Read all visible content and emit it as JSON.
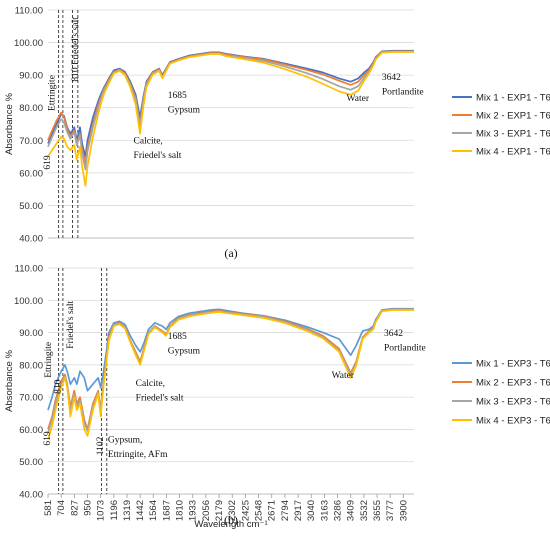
{
  "chart_data": [
    {
      "type": "line",
      "panel_label": "(a)",
      "ylabel": "Absorbance %",
      "ylim": [
        40,
        110
      ],
      "yticks": [
        "40.00",
        "50.00",
        "60.00",
        "70.00",
        "80.00",
        "90.00",
        "100.00",
        "110.00"
      ],
      "xlim": [
        581,
        4000
      ],
      "grid": true,
      "legend_position": "right",
      "annotations": [
        {
          "text": "Ettringite",
          "x": 640,
          "y": 79,
          "rotate": true
        },
        {
          "text": "810 Friedel's salt",
          "x": 860,
          "y": 88,
          "rotate": true
        },
        {
          "text": "619",
          "x": 600,
          "y": 61,
          "rotate": true
        },
        {
          "text": "1685",
          "x": 1700,
          "y": 83
        },
        {
          "text": "Gypsum",
          "x": 1700,
          "y": 78.5
        },
        {
          "text": "Calcite,",
          "x": 1380,
          "y": 69
        },
        {
          "text": "Friedel's salt",
          "x": 1380,
          "y": 64.5
        },
        {
          "text": "Water",
          "x": 3370,
          "y": 82
        },
        {
          "text": "3642",
          "x": 3700,
          "y": 88.5
        },
        {
          "text": "Portlandite",
          "x": 3700,
          "y": 84
        }
      ],
      "dashed_x": [
        680,
        720,
        810,
        860
      ],
      "series": [
        {
          "name": "Mix 1 - EXP1 - T6",
          "color": "#4472C4",
          "x": [
            581,
            619,
            660,
            704,
            730,
            760,
            790,
            827,
            850,
            880,
            900,
            930,
            950,
            1000,
            1050,
            1073,
            1100,
            1150,
            1196,
            1250,
            1300,
            1350,
            1400,
            1440,
            1470,
            1500,
            1560,
            1620,
            1650,
            1685,
            1720,
            1800,
            1900,
            2000,
            2100,
            2179,
            2250,
            2400,
            2600,
            2800,
            3000,
            3150,
            3300,
            3409,
            3480,
            3540,
            3580,
            3620,
            3642,
            3700,
            3800,
            3900,
            4000
          ],
          "y": [
            69,
            72,
            75,
            78,
            77.5,
            74,
            72,
            74,
            70,
            74,
            69,
            65,
            70,
            77,
            82,
            84,
            86,
            89,
            91.5,
            92,
            91,
            88,
            84,
            77,
            83,
            88,
            91,
            92,
            90,
            92,
            94,
            95,
            96,
            96.5,
            97,
            97,
            96.5,
            95.8,
            95,
            93.5,
            92,
            90.8,
            89,
            88,
            89,
            91,
            92,
            94,
            95.5,
            97.3,
            97.5,
            97.5,
            97.5
          ]
        },
        {
          "name": "Mix 2 - EXP1 - T6",
          "color": "#ED7D31",
          "x": [
            581,
            619,
            660,
            704,
            730,
            760,
            790,
            827,
            850,
            880,
            900,
            930,
            950,
            1000,
            1050,
            1073,
            1100,
            1150,
            1196,
            1250,
            1300,
            1350,
            1400,
            1440,
            1470,
            1500,
            1560,
            1620,
            1650,
            1685,
            1720,
            1800,
            1900,
            2000,
            2100,
            2179,
            2250,
            2400,
            2600,
            2800,
            3000,
            3150,
            3300,
            3409,
            3480,
            3540,
            3580,
            3620,
            3642,
            3700,
            3800,
            3900,
            4000
          ],
          "y": [
            70,
            73,
            76,
            78.5,
            77,
            73.5,
            71,
            73,
            69,
            72,
            67,
            63,
            68,
            75,
            81,
            83,
            85.5,
            88.5,
            91,
            91.8,
            90.6,
            87.3,
            83,
            75,
            82,
            87.5,
            90.8,
            91.8,
            89.5,
            91.8,
            93.8,
            94.8,
            95.8,
            96.3,
            96.8,
            96.8,
            96.3,
            95.6,
            94.8,
            93.2,
            91.6,
            90.2,
            88.3,
            87,
            88,
            90.3,
            91.5,
            93.6,
            95.2,
            97.1,
            97.3,
            97.3,
            97.3
          ]
        },
        {
          "name": "Mix 3 - EXP1 - T6",
          "color": "#A5A5A5",
          "x": [
            581,
            619,
            660,
            704,
            730,
            760,
            790,
            827,
            850,
            880,
            900,
            930,
            950,
            1000,
            1050,
            1073,
            1100,
            1150,
            1196,
            1250,
            1300,
            1350,
            1400,
            1440,
            1470,
            1500,
            1560,
            1620,
            1650,
            1685,
            1720,
            1800,
            1900,
            2000,
            2100,
            2179,
            2250,
            2400,
            2600,
            2800,
            3000,
            3150,
            3300,
            3409,
            3480,
            3540,
            3580,
            3620,
            3642,
            3700,
            3800,
            3900,
            4000
          ],
          "y": [
            68,
            71,
            74,
            76.5,
            75.5,
            72.5,
            70.5,
            72.5,
            68.5,
            71.5,
            66,
            61,
            66.5,
            74,
            80,
            82.5,
            85,
            88,
            90.8,
            91.5,
            90.3,
            87,
            82.5,
            74,
            81.5,
            87,
            90.5,
            91.5,
            89.3,
            91.5,
            93.6,
            94.6,
            95.6,
            96.1,
            96.6,
            96.6,
            96,
            95.3,
            94.3,
            92.6,
            90.6,
            88.8,
            86.6,
            85.5,
            86.6,
            89.5,
            91,
            93.3,
            95,
            97,
            97.2,
            97.2,
            97.2
          ]
        },
        {
          "name": "Mix 4 - EXP1 - T6",
          "color": "#FFC000",
          "x": [
            581,
            619,
            660,
            704,
            730,
            760,
            790,
            827,
            850,
            880,
            900,
            930,
            950,
            1000,
            1050,
            1073,
            1100,
            1150,
            1196,
            1250,
            1300,
            1350,
            1400,
            1440,
            1470,
            1500,
            1560,
            1620,
            1650,
            1685,
            1720,
            1800,
            1900,
            2000,
            2100,
            2179,
            2250,
            2400,
            2600,
            2800,
            3000,
            3150,
            3300,
            3409,
            3480,
            3540,
            3580,
            3620,
            3642,
            3700,
            3800,
            3900,
            4000
          ],
          "y": [
            65,
            67,
            69,
            71,
            70.5,
            68,
            67,
            68.5,
            64,
            68,
            62,
            56,
            62,
            71,
            78,
            81,
            84,
            87.5,
            90.5,
            91.3,
            90,
            86.3,
            81,
            72,
            80,
            86.3,
            90.2,
            91.3,
            89,
            91.3,
            93.5,
            94.5,
            95.5,
            96,
            96.5,
            96.5,
            95.8,
            95,
            93.8,
            91.8,
            89.5,
            87.3,
            85,
            84,
            85.3,
            88.6,
            90.5,
            93,
            94.8,
            96.9,
            97.1,
            97.1,
            97.1
          ]
        }
      ]
    },
    {
      "type": "line",
      "panel_label": "(b)",
      "ylabel": "Absorbance %",
      "xlabel": "Wavelength cm⁻¹",
      "ylim": [
        40,
        110
      ],
      "yticks": [
        "40.00",
        "50.00",
        "60.00",
        "70.00",
        "80.00",
        "90.00",
        "100.00",
        "110.00"
      ],
      "xlim": [
        581,
        4000
      ],
      "xticks": [
        "581",
        "704",
        "827",
        "950",
        "1073",
        "1196",
        "1319",
        "1442",
        "1564",
        "1687",
        "1810",
        "1933",
        "2056",
        "2179",
        "2302",
        "2425",
        "2548",
        "2671",
        "2794",
        "2917",
        "3040",
        "3163",
        "3286",
        "3409",
        "3532",
        "3655",
        "3777",
        "3900"
      ],
      "grid": true,
      "legend_position": "right",
      "annotations": [
        {
          "text": "Ettringite",
          "x": 610,
          "y": 76,
          "rotate": true
        },
        {
          "text": "810",
          "x": 700,
          "y": 71,
          "rotate": true
        },
        {
          "text": "Friedel's salt",
          "x": 815,
          "y": 85,
          "rotate": true
        },
        {
          "text": "619",
          "x": 600,
          "y": 55,
          "rotate": true
        },
        {
          "text": "1102",
          "x": 1095,
          "y": 52,
          "rotate": true
        },
        {
          "text": "Gypsum,",
          "x": 1140,
          "y": 56
        },
        {
          "text": "Ettringite,  AFm",
          "x": 1140,
          "y": 51.5
        },
        {
          "text": "1685",
          "x": 1700,
          "y": 88
        },
        {
          "text": "Gypsum",
          "x": 1700,
          "y": 83.5
        },
        {
          "text": "Calcite,",
          "x": 1400,
          "y": 73.5
        },
        {
          "text": "Friedel's salt",
          "x": 1400,
          "y": 69
        },
        {
          "text": "Water",
          "x": 3230,
          "y": 76
        },
        {
          "text": "3642",
          "x": 3720,
          "y": 89
        },
        {
          "text": "Portlandite",
          "x": 3720,
          "y": 84.5
        }
      ],
      "dashed_x": [
        680,
        720,
        1080,
        1130
      ],
      "series": [
        {
          "name": "Mix 1 - EXP3 - T6",
          "color": "#5B9BD5",
          "x": [
            581,
            619,
            650,
            704,
            740,
            760,
            790,
            827,
            850,
            880,
            920,
            950,
            1000,
            1050,
            1073,
            1100,
            1130,
            1150,
            1196,
            1250,
            1300,
            1350,
            1400,
            1442,
            1480,
            1520,
            1580,
            1650,
            1685,
            1720,
            1800,
            1900,
            2000,
            2100,
            2179,
            2250,
            2400,
            2600,
            2800,
            3000,
            3150,
            3300,
            3409,
            3460,
            3520,
            3580,
            3620,
            3642,
            3700,
            3800,
            3900,
            4000
          ],
          "y": [
            66,
            70,
            74,
            78,
            80,
            78,
            74,
            76,
            74,
            78,
            76,
            72,
            74,
            76,
            73,
            78,
            85,
            90,
            93,
            93.5,
            92.5,
            89,
            86,
            84,
            87,
            91,
            93,
            92,
            91,
            93,
            95,
            96,
            96.5,
            97,
            97.2,
            96.8,
            96,
            95.2,
            93.8,
            91.8,
            90,
            88,
            83,
            86,
            90.5,
            91,
            92,
            94,
            97,
            97.4,
            97.4,
            97.4
          ]
        },
        {
          "name": "Mix 2 - EXP3 - T6",
          "color": "#ED7D31",
          "x": [
            581,
            619,
            650,
            704,
            740,
            760,
            790,
            827,
            850,
            880,
            920,
            950,
            1000,
            1050,
            1073,
            1100,
            1130,
            1150,
            1196,
            1250,
            1300,
            1350,
            1400,
            1442,
            1480,
            1520,
            1580,
            1650,
            1685,
            1720,
            1800,
            1900,
            2000,
            2100,
            2179,
            2250,
            2400,
            2600,
            2800,
            3000,
            3150,
            3300,
            3409,
            3460,
            3520,
            3580,
            3620,
            3642,
            3700,
            3800,
            3900,
            4000
          ],
          "y": [
            60,
            64,
            69,
            75,
            77,
            74,
            67,
            72,
            68,
            70,
            63,
            60,
            68,
            72,
            66,
            75,
            83,
            88.5,
            92.5,
            93,
            91.8,
            87.5,
            84,
            81,
            85.5,
            90,
            92,
            90.5,
            89.5,
            92,
            94.5,
            95.5,
            96,
            96.5,
            96.8,
            96.4,
            95.8,
            95,
            93.5,
            91.2,
            89,
            85,
            77.5,
            81,
            88.5,
            90.5,
            91.5,
            93.5,
            96.8,
            97.2,
            97.2,
            97.2
          ]
        },
        {
          "name": "Mix 3 - EXP3 - T6",
          "color": "#A5A5A5",
          "x": [
            581,
            619,
            650,
            704,
            740,
            760,
            790,
            827,
            850,
            880,
            920,
            950,
            1000,
            1050,
            1073,
            1100,
            1130,
            1150,
            1196,
            1250,
            1300,
            1350,
            1400,
            1442,
            1480,
            1520,
            1580,
            1650,
            1685,
            1720,
            1800,
            1900,
            2000,
            2100,
            2179,
            2250,
            2400,
            2600,
            2800,
            3000,
            3150,
            3300,
            3409,
            3460,
            3520,
            3580,
            3620,
            3642,
            3700,
            3800,
            3900,
            4000
          ],
          "y": [
            59,
            63,
            68,
            74,
            76.5,
            73.5,
            66,
            71,
            67,
            69,
            62,
            59.5,
            67,
            71.5,
            65.5,
            74.5,
            82.5,
            88,
            92.3,
            92.8,
            91.5,
            87.2,
            83.5,
            80.5,
            85,
            89.8,
            91.8,
            90.3,
            89.3,
            91.8,
            94.3,
            95.3,
            95.8,
            96.3,
            96.6,
            96.2,
            95.6,
            94.8,
            93.2,
            90.9,
            88.6,
            84.5,
            77,
            80.5,
            88.3,
            90.3,
            91.3,
            93.4,
            96.7,
            97.1,
            97.1,
            97.1
          ]
        },
        {
          "name": "Mix 4 - EXP3 - T6",
          "color": "#FFC000",
          "x": [
            581,
            619,
            650,
            704,
            740,
            760,
            790,
            827,
            850,
            880,
            920,
            950,
            1000,
            1050,
            1073,
            1100,
            1130,
            1150,
            1196,
            1250,
            1300,
            1350,
            1400,
            1442,
            1480,
            1520,
            1580,
            1650,
            1685,
            1720,
            1800,
            1900,
            2000,
            2100,
            2179,
            2250,
            2400,
            2600,
            2800,
            3000,
            3150,
            3300,
            3409,
            3460,
            3520,
            3580,
            3620,
            3642,
            3700,
            3800,
            3900,
            4000
          ],
          "y": [
            57,
            61,
            66,
            73,
            76,
            73,
            64,
            70,
            66,
            68,
            60,
            58,
            66,
            71,
            64,
            73.5,
            82,
            87.5,
            92,
            92.6,
            91.3,
            87,
            83,
            80,
            84.5,
            89.5,
            91.6,
            90,
            89,
            91.6,
            94,
            95,
            95.6,
            96.1,
            96.4,
            96,
            95.4,
            94.5,
            92.9,
            90.5,
            88.2,
            84,
            76,
            79.8,
            88,
            90,
            91,
            93.2,
            96.6,
            97,
            97,
            97
          ]
        }
      ]
    }
  ]
}
